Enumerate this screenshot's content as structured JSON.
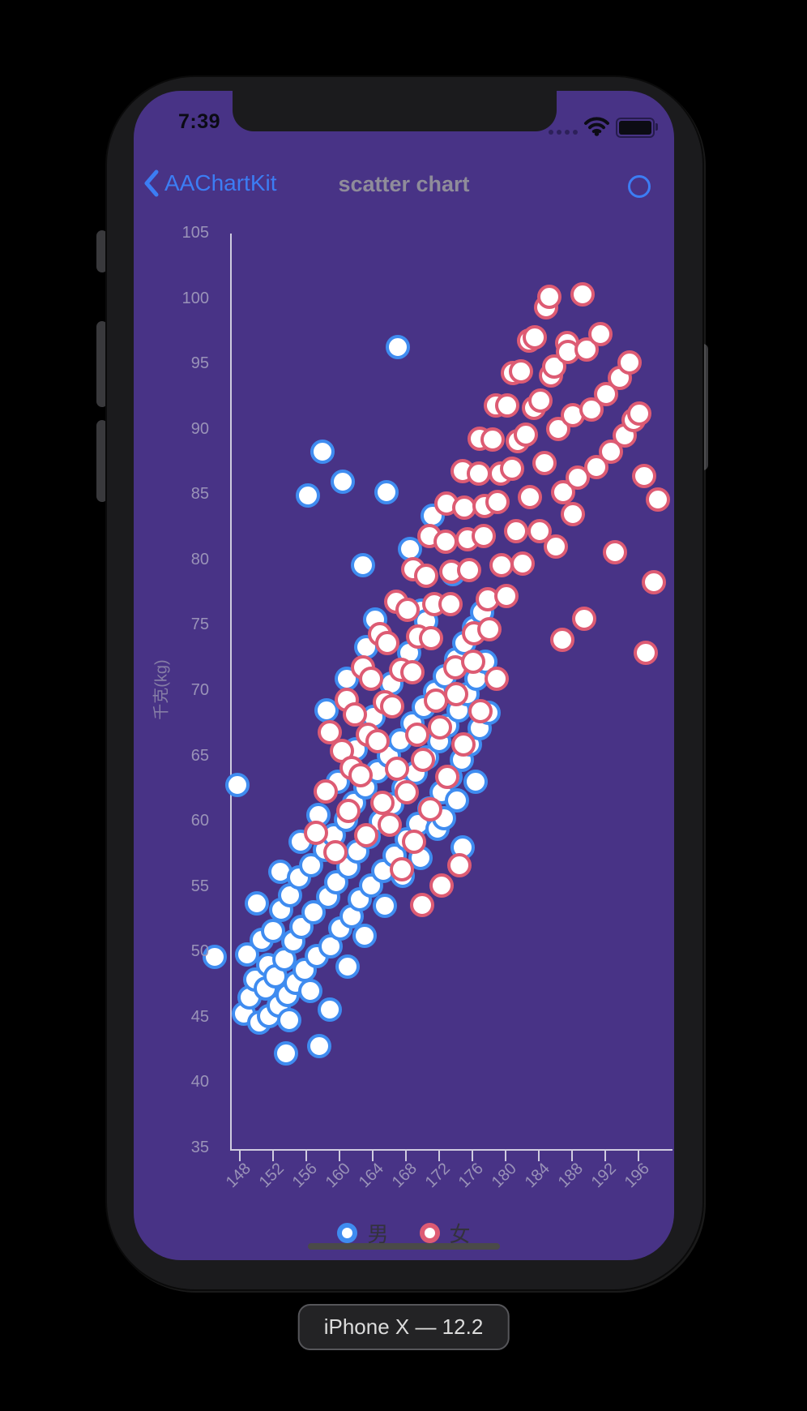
{
  "status_bar": {
    "time": "7:39"
  },
  "nav_bar": {
    "back_label": "AAChartKit",
    "title": "scatter chart"
  },
  "device_label": "iPhone X — 12.2",
  "chart_data": {
    "type": "scatter",
    "title": "",
    "xlabel": "",
    "ylabel": "千克(kg)",
    "xlim": [
      148,
      196
    ],
    "ylim": [
      35,
      105
    ],
    "xticks": [
      148,
      152,
      156,
      160,
      164,
      168,
      172,
      176,
      180,
      184,
      188,
      192,
      196
    ],
    "yticks": [
      35,
      40,
      45,
      50,
      55,
      60,
      65,
      70,
      75,
      80,
      85,
      90,
      95,
      100,
      105
    ],
    "grid": false,
    "legend_position": "bottom",
    "series": [
      {
        "name": "男",
        "color": "#3f8cf0",
        "data": [
          [
            145.0,
            49.6
          ],
          [
            147.8,
            62.8
          ],
          [
            148.5,
            45.3
          ],
          [
            148.9,
            49.8
          ],
          [
            149.2,
            46.5
          ],
          [
            149.9,
            47.9
          ],
          [
            150.1,
            53.7
          ],
          [
            150.4,
            44.6
          ],
          [
            150.7,
            50.9
          ],
          [
            151.2,
            47.2
          ],
          [
            151.5,
            49.0
          ],
          [
            151.6,
            45.1
          ],
          [
            152.0,
            51.6
          ],
          [
            152.3,
            48.1
          ],
          [
            152.7,
            45.9
          ],
          [
            152.9,
            56.1
          ],
          [
            153.0,
            53.2
          ],
          [
            153.4,
            49.4
          ],
          [
            153.6,
            42.2
          ],
          [
            153.8,
            46.7
          ],
          [
            154.0,
            44.8
          ],
          [
            154.1,
            54.3
          ],
          [
            154.5,
            50.8
          ],
          [
            154.8,
            47.6
          ],
          [
            155.2,
            55.7
          ],
          [
            155.4,
            58.4
          ],
          [
            155.5,
            51.9
          ],
          [
            155.9,
            48.6
          ],
          [
            156.2,
            84.9
          ],
          [
            156.5,
            47.0
          ],
          [
            156.6,
            56.6
          ],
          [
            156.9,
            53.0
          ],
          [
            157.3,
            49.7
          ],
          [
            157.5,
            60.5
          ],
          [
            157.6,
            42.8
          ],
          [
            158.0,
            88.3
          ],
          [
            158.3,
            57.8
          ],
          [
            158.5,
            68.5
          ],
          [
            158.7,
            54.2
          ],
          [
            158.9,
            45.6
          ],
          [
            159.0,
            50.4
          ],
          [
            159.4,
            58.9
          ],
          [
            159.7,
            55.3
          ],
          [
            159.9,
            63.0
          ],
          [
            160.1,
            51.8
          ],
          [
            160.4,
            86.0
          ],
          [
            160.8,
            60.1
          ],
          [
            160.9,
            70.9
          ],
          [
            161.0,
            48.9
          ],
          [
            161.1,
            56.5
          ],
          [
            161.5,
            52.7
          ],
          [
            161.8,
            61.4
          ],
          [
            162.0,
            65.5
          ],
          [
            162.2,
            57.7
          ],
          [
            162.5,
            54.0
          ],
          [
            162.9,
            79.6
          ],
          [
            163.1,
            51.2
          ],
          [
            163.2,
            62.6
          ],
          [
            163.3,
            73.3
          ],
          [
            163.6,
            58.8
          ],
          [
            163.9,
            55.1
          ],
          [
            164.1,
            68.0
          ],
          [
            164.3,
            75.4
          ],
          [
            164.6,
            63.8
          ],
          [
            165.0,
            60.0
          ],
          [
            165.3,
            56.2
          ],
          [
            165.5,
            53.5
          ],
          [
            165.7,
            85.2
          ],
          [
            166.0,
            65.0
          ],
          [
            166.3,
            70.5
          ],
          [
            166.4,
            61.3
          ],
          [
            166.7,
            57.4
          ],
          [
            167.1,
            96.3
          ],
          [
            167.4,
            66.2
          ],
          [
            167.7,
            55.8
          ],
          [
            167.8,
            62.5
          ],
          [
            168.1,
            58.6
          ],
          [
            168.4,
            72.9
          ],
          [
            168.5,
            80.8
          ],
          [
            168.8,
            67.5
          ],
          [
            169.2,
            63.7
          ],
          [
            169.5,
            59.8
          ],
          [
            169.8,
            57.2
          ],
          [
            169.9,
            76.1
          ],
          [
            170.2,
            68.7
          ],
          [
            170.5,
            75.3
          ],
          [
            170.6,
            64.9
          ],
          [
            170.9,
            61.0
          ],
          [
            171.3,
            83.4
          ],
          [
            171.6,
            69.9
          ],
          [
            171.9,
            59.4
          ],
          [
            172.0,
            66.1
          ],
          [
            172.3,
            62.2
          ],
          [
            172.6,
            60.2
          ],
          [
            172.7,
            71.1
          ],
          [
            173.0,
            67.3
          ],
          [
            173.4,
            63.4
          ],
          [
            173.7,
            78.9
          ],
          [
            174.1,
            72.4
          ],
          [
            174.2,
            61.6
          ],
          [
            174.4,
            68.5
          ],
          [
            174.8,
            64.7
          ],
          [
            174.9,
            58.0
          ],
          [
            175.1,
            73.6
          ],
          [
            175.5,
            69.7
          ],
          [
            175.8,
            65.9
          ],
          [
            176.2,
            74.8
          ],
          [
            176.4,
            63.0
          ],
          [
            176.5,
            70.9
          ],
          [
            176.9,
            67.1
          ],
          [
            177.2,
            76.0
          ],
          [
            177.6,
            72.2
          ],
          [
            178.0,
            68.3
          ]
        ]
      },
      {
        "name": "女",
        "color": "#dd5b73",
        "data": [
          [
            157.2,
            59.1
          ],
          [
            158.4,
            62.3
          ],
          [
            158.9,
            66.8
          ],
          [
            159.6,
            57.6
          ],
          [
            160.3,
            65.4
          ],
          [
            160.9,
            69.3
          ],
          [
            161.1,
            60.8
          ],
          [
            161.5,
            64.1
          ],
          [
            161.9,
            68.2
          ],
          [
            162.6,
            63.5
          ],
          [
            162.9,
            71.8
          ],
          [
            163.3,
            58.9
          ],
          [
            163.5,
            66.6
          ],
          [
            163.9,
            70.9
          ],
          [
            164.6,
            66.1
          ],
          [
            164.9,
            74.3
          ],
          [
            165.2,
            61.4
          ],
          [
            165.5,
            69.1
          ],
          [
            165.8,
            73.6
          ],
          [
            166.1,
            59.7
          ],
          [
            166.4,
            68.8
          ],
          [
            166.9,
            76.8
          ],
          [
            167.0,
            64.0
          ],
          [
            167.5,
            71.6
          ],
          [
            167.6,
            56.3
          ],
          [
            168.1,
            62.2
          ],
          [
            168.2,
            76.2
          ],
          [
            168.8,
            71.4
          ],
          [
            168.9,
            79.3
          ],
          [
            169.0,
            58.4
          ],
          [
            169.4,
            66.6
          ],
          [
            169.5,
            74.1
          ],
          [
            170.0,
            53.6
          ],
          [
            170.1,
            64.7
          ],
          [
            170.5,
            78.8
          ],
          [
            170.9,
            81.8
          ],
          [
            171.0,
            60.9
          ],
          [
            171.1,
            74.0
          ],
          [
            171.5,
            76.6
          ],
          [
            171.7,
            69.2
          ],
          [
            172.1,
            67.2
          ],
          [
            172.3,
            55.1
          ],
          [
            172.8,
            81.4
          ],
          [
            172.9,
            84.3
          ],
          [
            173.0,
            63.4
          ],
          [
            173.4,
            76.6
          ],
          [
            173.5,
            79.1
          ],
          [
            174.0,
            71.8
          ],
          [
            174.1,
            69.7
          ],
          [
            174.5,
            56.6
          ],
          [
            174.9,
            86.8
          ],
          [
            175.0,
            65.9
          ],
          [
            175.1,
            84.0
          ],
          [
            175.5,
            81.6
          ],
          [
            175.7,
            79.2
          ],
          [
            176.1,
            72.2
          ],
          [
            176.2,
            74.4
          ],
          [
            176.8,
            86.6
          ],
          [
            176.9,
            89.3
          ],
          [
            177.0,
            68.4
          ],
          [
            177.4,
            81.8
          ],
          [
            177.5,
            84.1
          ],
          [
            177.9,
            77.0
          ],
          [
            178.1,
            74.7
          ],
          [
            178.5,
            89.2
          ],
          [
            178.9,
            91.8
          ],
          [
            179.0,
            70.9
          ],
          [
            179.1,
            84.4
          ],
          [
            179.5,
            86.6
          ],
          [
            179.6,
            79.6
          ],
          [
            180.1,
            77.2
          ],
          [
            180.2,
            91.8
          ],
          [
            180.8,
            87.0
          ],
          [
            180.9,
            94.3
          ],
          [
            181.3,
            82.2
          ],
          [
            181.5,
            89.1
          ],
          [
            181.9,
            94.4
          ],
          [
            182.1,
            79.7
          ],
          [
            182.5,
            89.6
          ],
          [
            182.9,
            96.8
          ],
          [
            183.0,
            84.8
          ],
          [
            183.5,
            91.6
          ],
          [
            183.6,
            97.0
          ],
          [
            184.1,
            82.2
          ],
          [
            184.2,
            92.2
          ],
          [
            184.7,
            87.4
          ],
          [
            184.9,
            99.3
          ],
          [
            185.3,
            100.1
          ],
          [
            185.5,
            94.1
          ],
          [
            185.9,
            94.8
          ],
          [
            186.1,
            81.0
          ],
          [
            186.4,
            90.0
          ],
          [
            186.9,
            73.9
          ],
          [
            187.0,
            85.2
          ],
          [
            187.5,
            96.6
          ],
          [
            187.6,
            95.9
          ],
          [
            188.1,
            83.5
          ],
          [
            188.1,
            91.1
          ],
          [
            188.7,
            86.3
          ],
          [
            189.3,
            100.3
          ],
          [
            189.5,
            75.5
          ],
          [
            189.8,
            96.1
          ],
          [
            190.4,
            91.5
          ],
          [
            191.0,
            87.1
          ],
          [
            191.5,
            97.3
          ],
          [
            192.1,
            92.7
          ],
          [
            192.7,
            88.3
          ],
          [
            193.2,
            80.6
          ],
          [
            193.8,
            93.9
          ],
          [
            194.4,
            89.5
          ],
          [
            195.0,
            95.1
          ],
          [
            195.5,
            90.7
          ],
          [
            196.1,
            91.2
          ],
          [
            196.7,
            86.4
          ],
          [
            196.9,
            72.9
          ],
          [
            197.9,
            78.3
          ],
          [
            198.4,
            84.6
          ]
        ]
      }
    ]
  }
}
